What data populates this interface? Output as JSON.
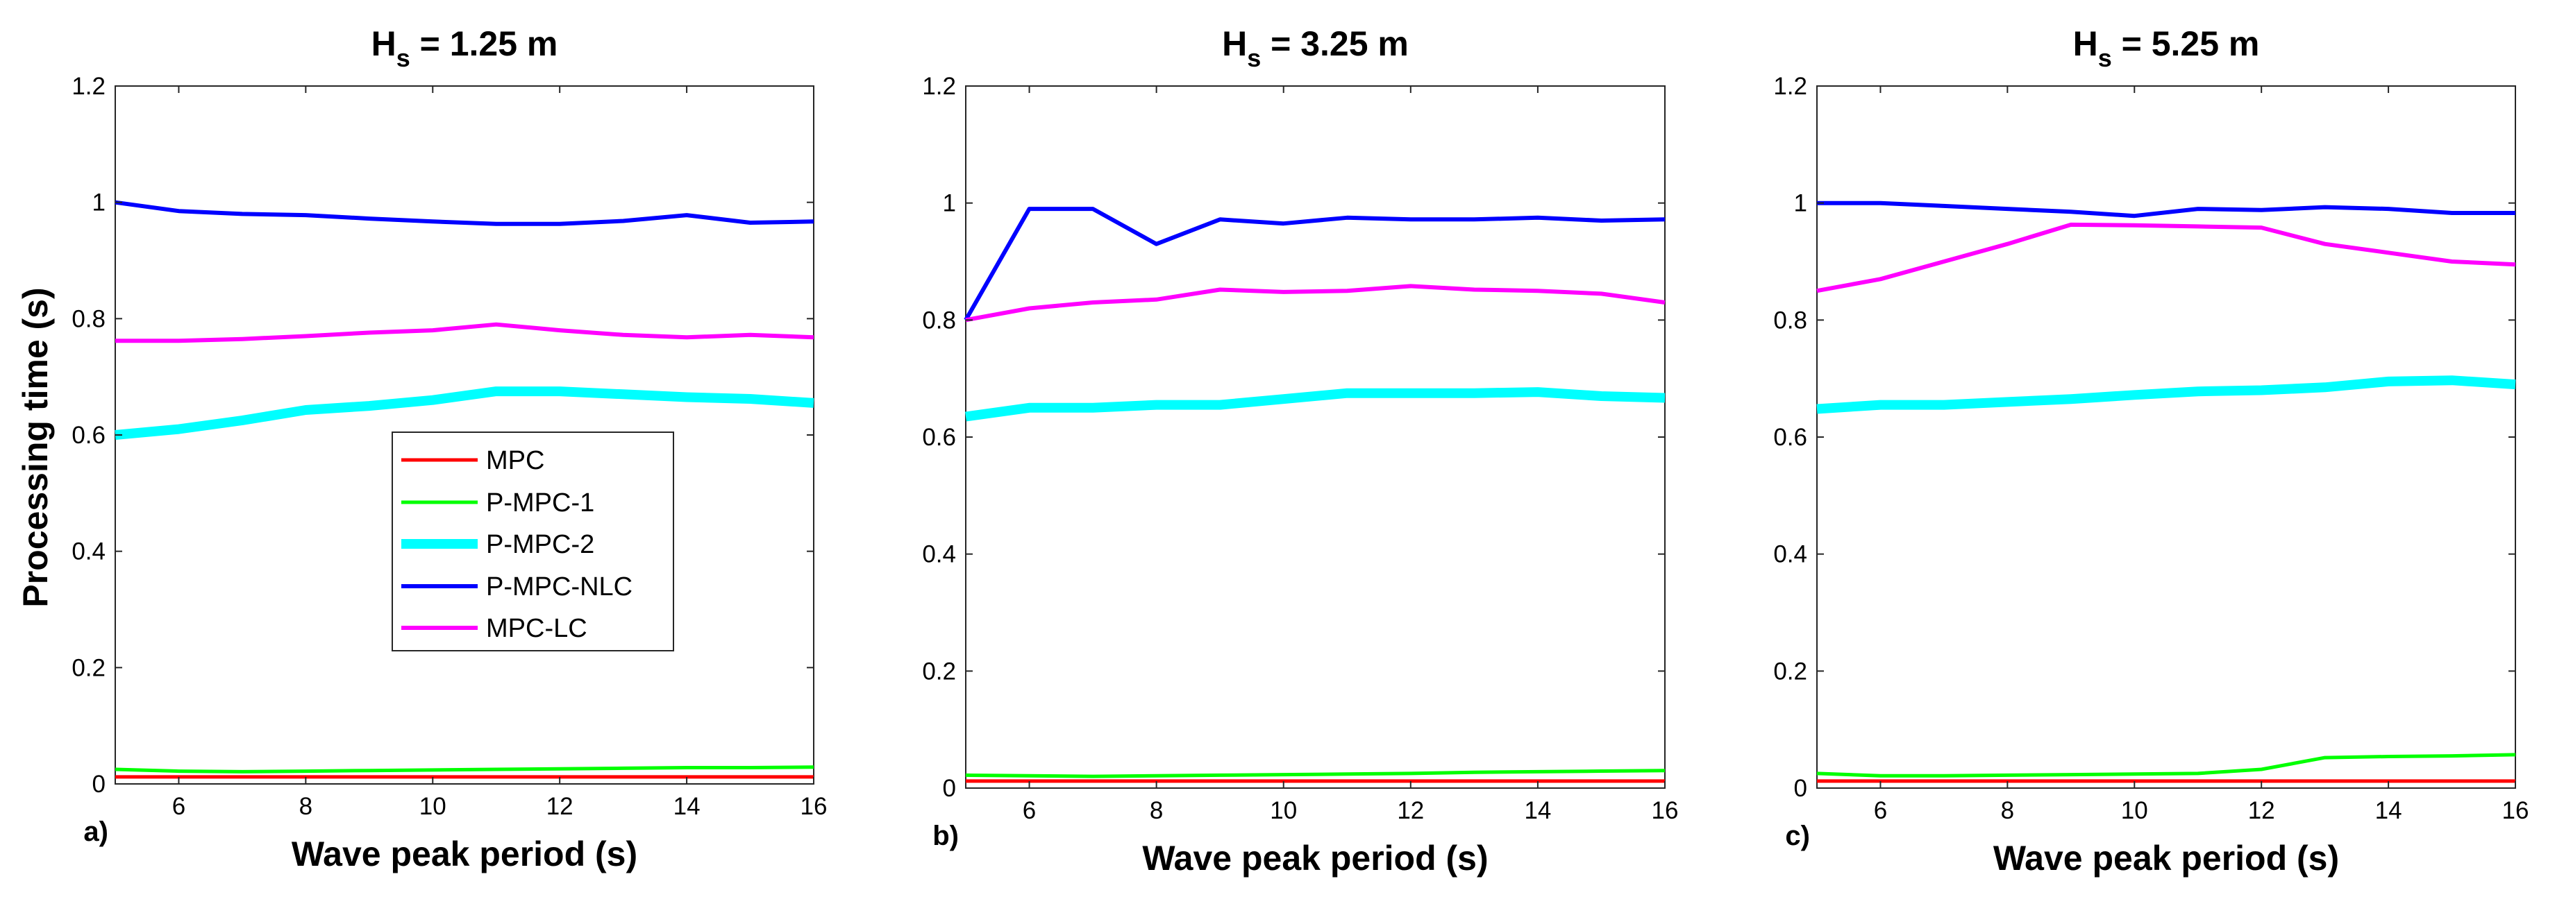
{
  "chart_data": [
    {
      "type": "line",
      "panel_label": "a)",
      "title_main": "H",
      "title_sub": "s",
      "title_rest": " = 1.25 m",
      "xlabel": "Wave peak period (s)",
      "ylabel": "Processing time (s)",
      "xlim": [
        5,
        16
      ],
      "ylim": [
        0,
        1.2
      ],
      "xticks": [
        6,
        8,
        10,
        12,
        14,
        16
      ],
      "xtick_labels": [
        "6",
        "8",
        "10",
        "12",
        "14",
        "16"
      ],
      "yticks": [
        0,
        0.2,
        0.4,
        0.6,
        0.8,
        1,
        1.2
      ],
      "ytick_labels": [
        "0",
        "0.2",
        "0.4",
        "0.6",
        "0.8",
        "1",
        "1.2"
      ],
      "x": [
        5,
        6,
        7,
        8,
        9,
        10,
        11,
        12,
        13,
        14,
        15,
        16
      ],
      "series": [
        {
          "name": "MPC",
          "color": "#ff0000",
          "width": 5,
          "values": [
            0.012,
            0.012,
            0.012,
            0.012,
            0.012,
            0.012,
            0.012,
            0.012,
            0.012,
            0.012,
            0.012,
            0.012
          ]
        },
        {
          "name": "P-MPC-1",
          "color": "#00ff00",
          "width": 5,
          "values": [
            0.025,
            0.022,
            0.021,
            0.022,
            0.023,
            0.024,
            0.025,
            0.026,
            0.027,
            0.028,
            0.028,
            0.029
          ]
        },
        {
          "name": "P-MPC-2",
          "color": "#00ffff",
          "width": 14,
          "values": [
            0.6,
            0.61,
            0.625,
            0.643,
            0.65,
            0.66,
            0.675,
            0.675,
            0.67,
            0.665,
            0.662,
            0.655
          ]
        },
        {
          "name": "P-MPC-NLC",
          "color": "#0000ff",
          "width": 6,
          "values": [
            1.0,
            0.985,
            0.98,
            0.978,
            0.972,
            0.967,
            0.963,
            0.963,
            0.968,
            0.978,
            0.965,
            0.967
          ]
        },
        {
          "name": "MPC-LC",
          "color": "#ff00ff",
          "width": 6,
          "values": [
            0.762,
            0.762,
            0.765,
            0.77,
            0.776,
            0.78,
            0.79,
            0.78,
            0.772,
            0.768,
            0.772,
            0.768
          ]
        }
      ],
      "legend": {
        "placement": "center-left",
        "entries": [
          "MPC",
          "P-MPC-1",
          "P-MPC-2",
          "P-MPC-NLC",
          "MPC-LC"
        ]
      }
    },
    {
      "type": "line",
      "panel_label": "b)",
      "title_main": "H",
      "title_sub": "s",
      "title_rest": " = 3.25 m",
      "xlabel": "Wave peak period (s)",
      "ylabel": "",
      "xlim": [
        5,
        16
      ],
      "ylim": [
        0,
        1.2
      ],
      "xticks": [
        6,
        8,
        10,
        12,
        14,
        16
      ],
      "xtick_labels": [
        "6",
        "8",
        "10",
        "12",
        "14",
        "16"
      ],
      "yticks": [
        0,
        0.2,
        0.4,
        0.6,
        0.8,
        1,
        1.2
      ],
      "ytick_labels": [
        "0",
        "0.2",
        "0.4",
        "0.6",
        "0.8",
        "1",
        "1.2"
      ],
      "x": [
        5,
        6,
        7,
        8,
        9,
        10,
        11,
        12,
        13,
        14,
        15,
        16
      ],
      "series": [
        {
          "name": "MPC",
          "color": "#ff0000",
          "width": 5,
          "values": [
            0.012,
            0.012,
            0.012,
            0.012,
            0.012,
            0.012,
            0.012,
            0.012,
            0.012,
            0.012,
            0.012,
            0.012
          ]
        },
        {
          "name": "P-MPC-1",
          "color": "#00ff00",
          "width": 5,
          "values": [
            0.022,
            0.021,
            0.02,
            0.021,
            0.022,
            0.023,
            0.024,
            0.025,
            0.027,
            0.028,
            0.029,
            0.03
          ]
        },
        {
          "name": "P-MPC-2",
          "color": "#00ffff",
          "width": 14,
          "values": [
            0.635,
            0.65,
            0.65,
            0.655,
            0.655,
            0.665,
            0.675,
            0.675,
            0.675,
            0.677,
            0.67,
            0.667
          ]
        },
        {
          "name": "P-MPC-NLC",
          "color": "#0000ff",
          "width": 6,
          "values": [
            0.8,
            0.99,
            0.99,
            0.93,
            0.972,
            0.965,
            0.975,
            0.972,
            0.972,
            0.975,
            0.97,
            0.972
          ]
        },
        {
          "name": "MPC-LC",
          "color": "#ff00ff",
          "width": 6,
          "values": [
            0.8,
            0.82,
            0.83,
            0.835,
            0.852,
            0.848,
            0.85,
            0.858,
            0.852,
            0.85,
            0.845,
            0.83
          ]
        }
      ]
    },
    {
      "type": "line",
      "panel_label": "c)",
      "title_main": "H",
      "title_sub": "s",
      "title_rest": " = 5.25 m",
      "xlabel": "Wave peak period (s)",
      "ylabel": "",
      "xlim": [
        5,
        16
      ],
      "ylim": [
        0,
        1.2
      ],
      "xticks": [
        6,
        8,
        10,
        12,
        14,
        16
      ],
      "xtick_labels": [
        "6",
        "8",
        "10",
        "12",
        "14",
        "16"
      ],
      "yticks": [
        0,
        0.2,
        0.4,
        0.6,
        0.8,
        1,
        1.2
      ],
      "ytick_labels": [
        "0",
        "0.2",
        "0.4",
        "0.6",
        "0.8",
        "1",
        "1.2"
      ],
      "x": [
        5,
        6,
        7,
        8,
        9,
        10,
        11,
        12,
        13,
        14,
        15,
        16
      ],
      "series": [
        {
          "name": "MPC",
          "color": "#ff0000",
          "width": 5,
          "values": [
            0.012,
            0.012,
            0.012,
            0.012,
            0.012,
            0.012,
            0.012,
            0.012,
            0.012,
            0.012,
            0.012,
            0.012
          ]
        },
        {
          "name": "P-MPC-1",
          "color": "#00ff00",
          "width": 5,
          "values": [
            0.025,
            0.021,
            0.021,
            0.022,
            0.023,
            0.024,
            0.025,
            0.032,
            0.052,
            0.054,
            0.055,
            0.057
          ]
        },
        {
          "name": "P-MPC-2",
          "color": "#00ffff",
          "width": 14,
          "values": [
            0.648,
            0.655,
            0.655,
            0.66,
            0.665,
            0.672,
            0.678,
            0.68,
            0.685,
            0.695,
            0.697,
            0.69
          ]
        },
        {
          "name": "P-MPC-NLC",
          "color": "#0000ff",
          "width": 6,
          "values": [
            1.0,
            1.0,
            0.995,
            0.99,
            0.985,
            0.978,
            0.99,
            0.988,
            0.993,
            0.99,
            0.983,
            0.983
          ]
        },
        {
          "name": "MPC-LC",
          "color": "#ff00ff",
          "width": 6,
          "values": [
            0.85,
            0.87,
            0.9,
            0.93,
            0.963,
            0.962,
            0.96,
            0.958,
            0.93,
            0.915,
            0.9,
            0.895
          ]
        }
      ]
    }
  ]
}
